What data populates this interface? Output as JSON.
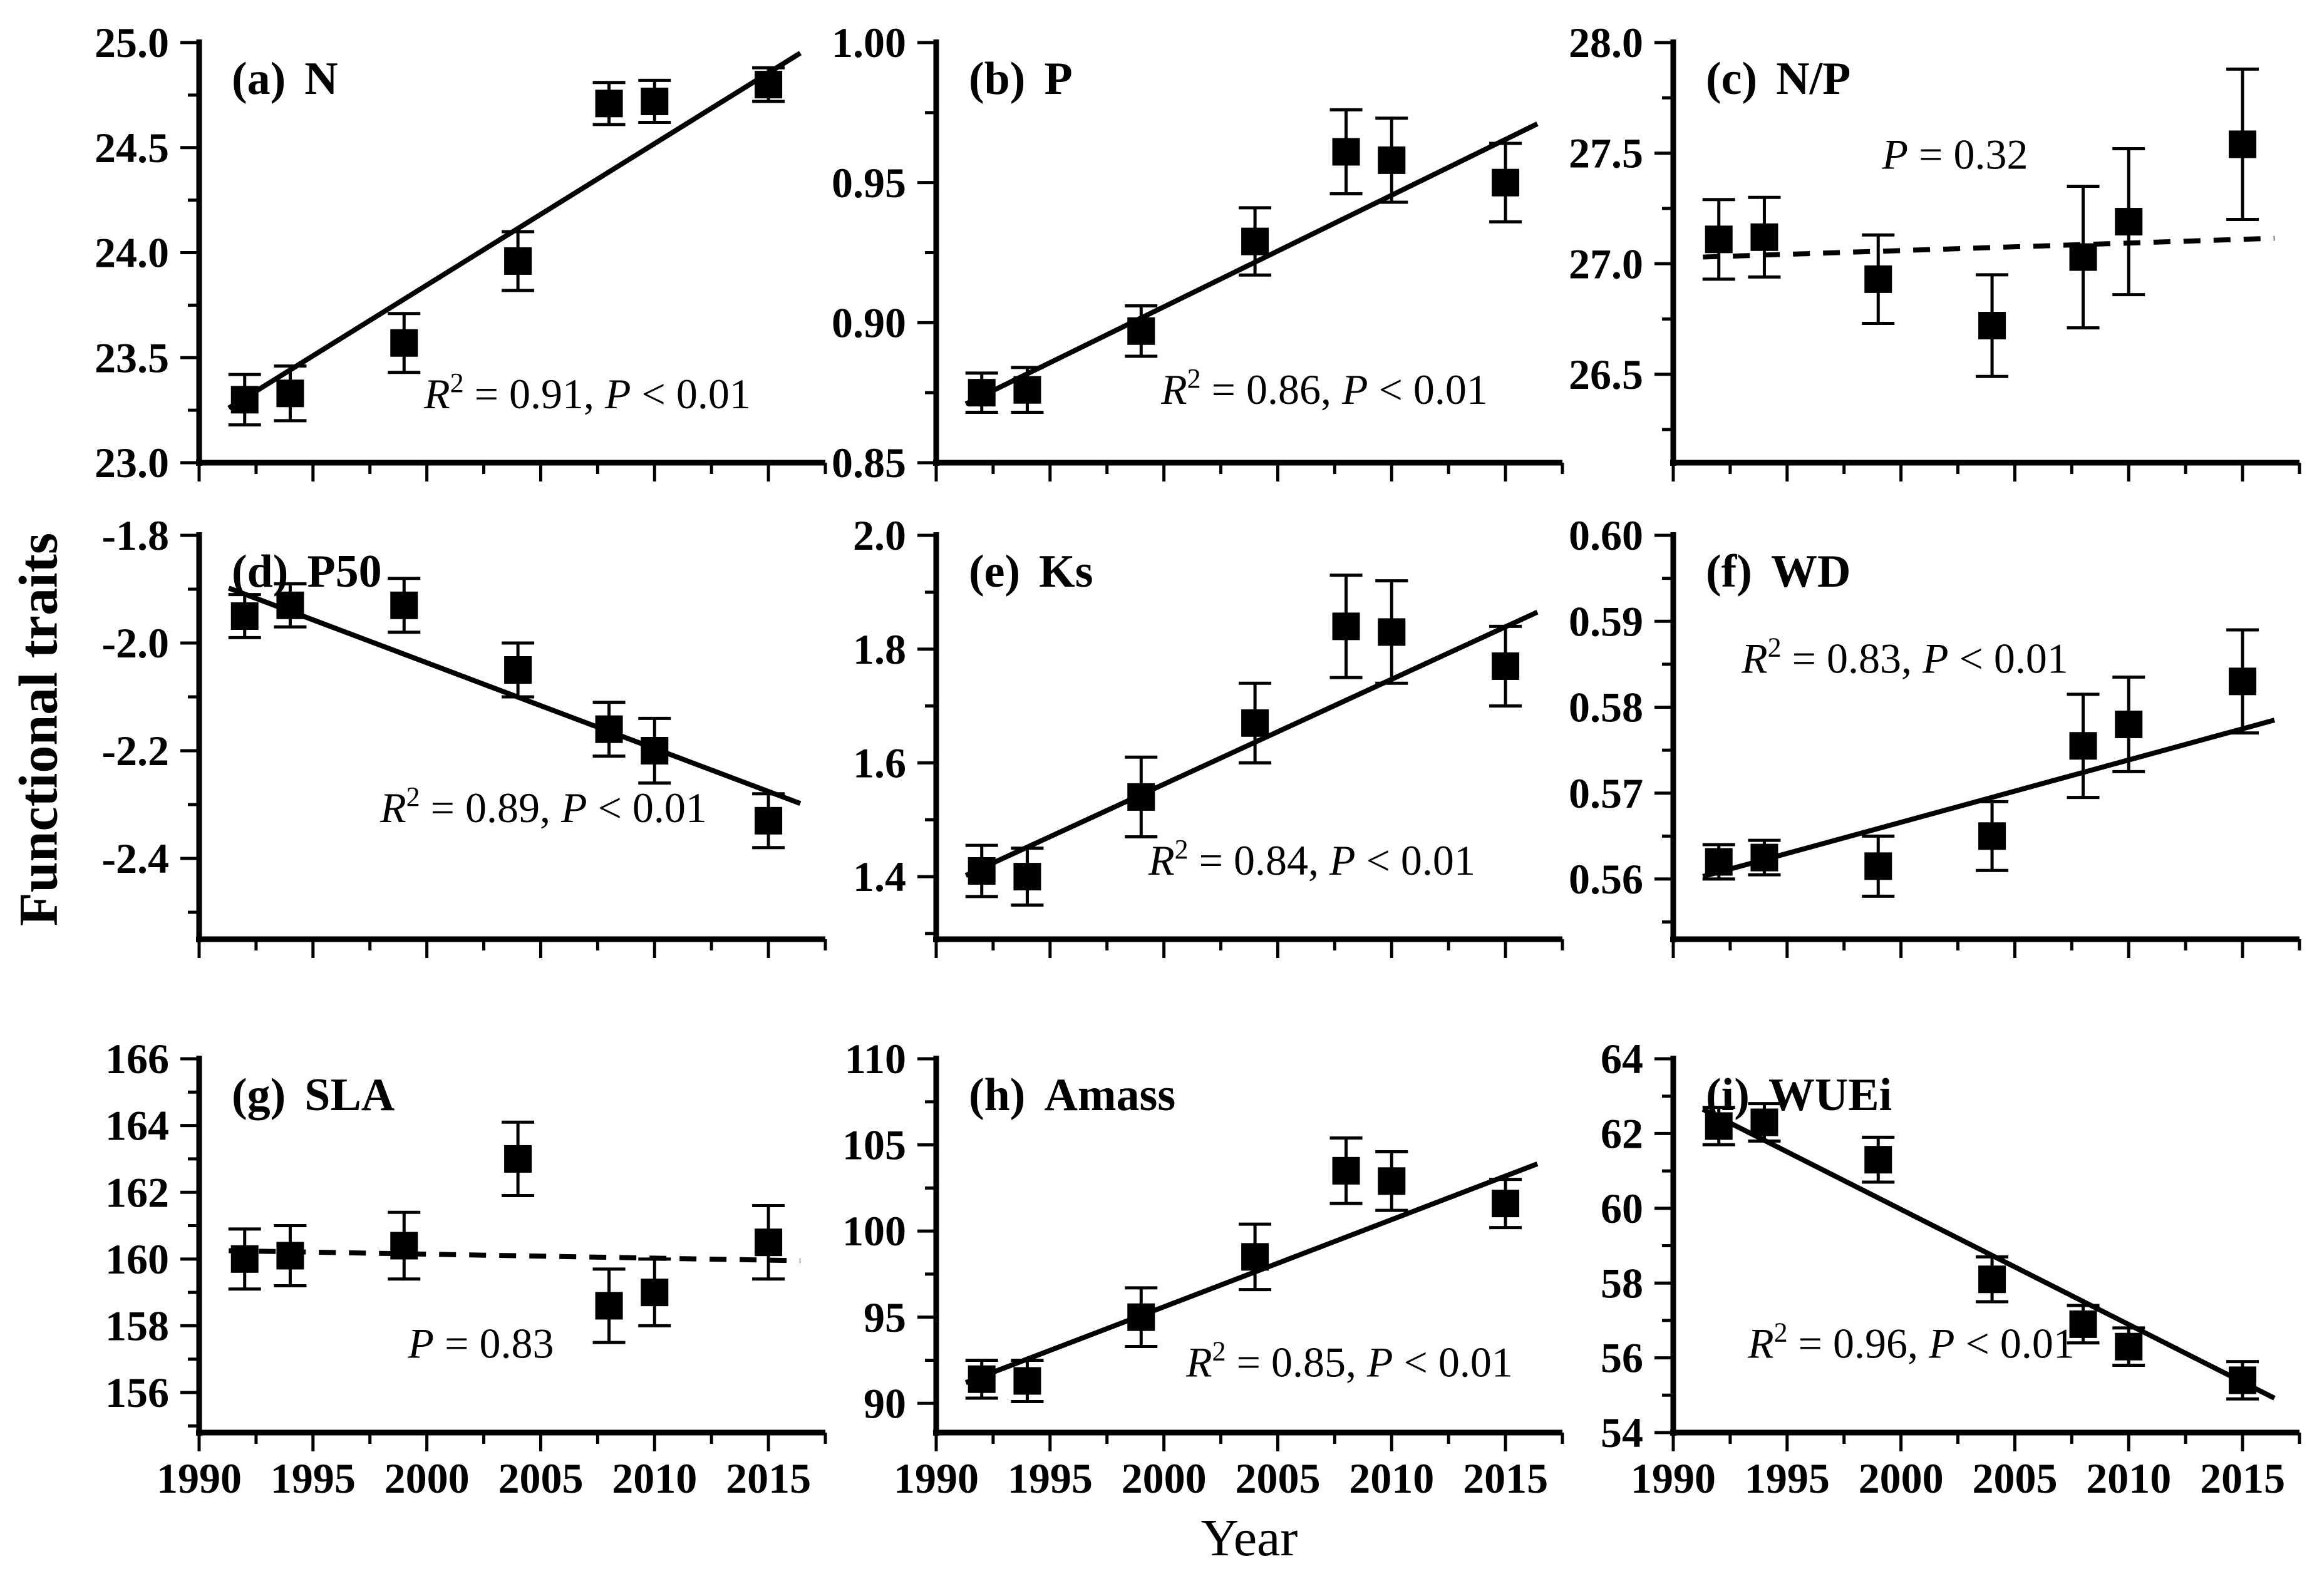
{
  "figure": {
    "y_axis_title": "Functional traits",
    "x_axis_title": "Year",
    "background": "#ffffff",
    "ink_color": "#000000"
  },
  "chart_data": {
    "type": "scatter",
    "title": "",
    "xlabel": "Year",
    "ylabel": "Functional traits",
    "legend": "none",
    "grid": false,
    "x": {
      "lim": [
        1990,
        2017.5
      ],
      "ticks": [
        1990,
        1995,
        2000,
        2005,
        2010,
        2015
      ],
      "tick_labels": [
        "1990",
        "1995",
        "2000",
        "2005",
        "2010",
        "2015"
      ],
      "minor_step": 2.5
    },
    "years": [
      1992,
      1994,
      1999,
      2004,
      2008,
      2010,
      2015
    ],
    "panels": [
      {
        "label": "(a)",
        "trait": "N",
        "values": [
          23.3,
          23.33,
          23.57,
          23.96,
          24.71,
          24.72,
          24.8
        ],
        "errors": [
          0.12,
          0.13,
          0.14,
          0.14,
          0.1,
          0.1,
          0.08
        ],
        "ylim": [
          23.0,
          25.0
        ],
        "yticks": [
          23.0,
          23.5,
          24.0,
          24.5,
          25.0
        ],
        "ytick_labels": [
          "23.0",
          "23.5",
          "24.0",
          "24.5",
          "25.0"
        ],
        "y_minor_step": 0.25,
        "trend": {
          "style": "solid",
          "x_start": 1991.3,
          "y_start": 23.26,
          "x_end": 2016.4,
          "y_end": 24.95
        },
        "stats": {
          "r2": "0.91",
          "p": "< 0.01"
        },
        "stats_pos": {
          "fx": 0.62,
          "fy": 0.13
        }
      },
      {
        "label": "(b)",
        "trait": "P",
        "values": [
          0.875,
          0.876,
          0.897,
          0.929,
          0.961,
          0.958,
          0.95
        ],
        "errors": [
          0.007,
          0.008,
          0.009,
          0.012,
          0.015,
          0.015,
          0.014
        ],
        "ylim": [
          0.85,
          1.0
        ],
        "yticks": [
          0.85,
          0.9,
          0.95,
          1.0
        ],
        "ytick_labels": [
          "0.85",
          "0.90",
          "0.95",
          "1.00"
        ],
        "y_minor_step": 0.025,
        "trend": {
          "style": "solid",
          "x_start": 1991.3,
          "y_start": 0.871,
          "x_end": 2016.4,
          "y_end": 0.971
        },
        "stats": {
          "r2": "0.86",
          "p": "< 0.01"
        },
        "stats_pos": {
          "fx": 0.62,
          "fy": 0.14
        }
      },
      {
        "label": "(c)",
        "trait": "N/P",
        "values": [
          27.11,
          27.12,
          26.93,
          26.72,
          27.03,
          27.19,
          27.54
        ],
        "errors": [
          0.18,
          0.18,
          0.2,
          0.23,
          0.32,
          0.33,
          0.34
        ],
        "ylim": [
          26.1,
          28.0
        ],
        "yticks": [
          26.5,
          27.0,
          27.5,
          28.0
        ],
        "ytick_labels": [
          "26.5",
          "27.0",
          "27.5",
          "28.0"
        ],
        "y_minor_step": 0.25,
        "trend": {
          "style": "dashed",
          "x_start": 1991.3,
          "y_start": 27.03,
          "x_end": 2016.4,
          "y_end": 27.115
        },
        "stats": {
          "r2": null,
          "p": "= 0.32"
        },
        "stats_pos": {
          "fx": 0.45,
          "fy": 0.7
        }
      },
      {
        "label": "(d)",
        "trait": "P50",
        "values": [
          -1.95,
          -1.93,
          -1.93,
          -2.05,
          -2.16,
          -2.2,
          -2.33
        ],
        "errors": [
          0.04,
          0.04,
          0.05,
          0.05,
          0.05,
          0.06,
          0.05
        ],
        "ylim": [
          -2.55,
          -1.8
        ],
        "yticks": [
          -2.4,
          -2.2,
          -2.0,
          -1.8
        ],
        "ytick_labels": [
          "-2.4",
          "-2.2",
          "-2.0",
          "-1.8"
        ],
        "y_minor_step": 0.1,
        "trend": {
          "style": "solid",
          "x_start": 1991.3,
          "y_start": -1.898,
          "x_end": 2016.4,
          "y_end": -2.298
        },
        "stats": {
          "r2": "0.89",
          "p": "< 0.01"
        },
        "stats_pos": {
          "fx": 0.55,
          "fy": 0.29
        }
      },
      {
        "label": "(e)",
        "trait": "Ks",
        "values": [
          1.41,
          1.4,
          1.54,
          1.67,
          1.84,
          1.83,
          1.77
        ],
        "errors": [
          0.045,
          0.05,
          0.07,
          0.07,
          0.09,
          0.09,
          0.07
        ],
        "ylim": [
          1.29,
          2.0
        ],
        "yticks": [
          1.4,
          1.6,
          1.8,
          2.0
        ],
        "ytick_labels": [
          "1.4",
          "1.6",
          "1.8",
          "2.0"
        ],
        "y_minor_step": 0.1,
        "trend": {
          "style": "solid",
          "x_start": 1991.3,
          "y_start": 1.402,
          "x_end": 2016.4,
          "y_end": 1.865
        },
        "stats": {
          "r2": "0.84",
          "p": "< 0.01"
        },
        "stats_pos": {
          "fx": 0.6,
          "fy": 0.16
        }
      },
      {
        "label": "(f)",
        "trait": "WD",
        "values": [
          0.562,
          0.5625,
          0.5615,
          0.565,
          0.5755,
          0.578,
          0.583
        ],
        "errors": [
          0.002,
          0.002,
          0.0035,
          0.004,
          0.006,
          0.0055,
          0.006
        ],
        "ylim": [
          0.553,
          0.6
        ],
        "yticks": [
          0.56,
          0.57,
          0.58,
          0.59,
          0.6
        ],
        "ytick_labels": [
          "0.56",
          "0.57",
          "0.58",
          "0.59",
          "0.60"
        ],
        "y_minor_step": 0.005,
        "trend": {
          "style": "solid",
          "x_start": 1991.3,
          "y_start": 0.5603,
          "x_end": 2016.4,
          "y_end": 0.5785
        },
        "stats": {
          "r2": "0.83",
          "p": "< 0.01"
        },
        "stats_pos": {
          "fx": 0.37,
          "fy": 0.66
        }
      },
      {
        "label": "(g)",
        "trait": "SLA",
        "values": [
          160.0,
          160.1,
          160.4,
          163.0,
          158.6,
          159.0,
          160.5
        ],
        "errors": [
          0.9,
          0.9,
          1.0,
          1.1,
          1.1,
          1.0,
          1.1
        ],
        "ylim": [
          154.8,
          166
        ],
        "yticks": [
          156,
          158,
          160,
          162,
          164,
          166
        ],
        "ytick_labels": [
          "156",
          "158",
          "160",
          "162",
          "164",
          "166"
        ],
        "y_minor_step": 1,
        "trend": {
          "style": "dashed",
          "x_start": 1991.3,
          "y_start": 160.25,
          "x_end": 2016.4,
          "y_end": 159.95
        },
        "stats": {
          "r2": null,
          "p": "= 0.83"
        },
        "stats_pos": {
          "fx": 0.45,
          "fy": 0.2
        }
      },
      {
        "label": "(h)",
        "trait": "Amass",
        "values": [
          91.4,
          91.3,
          95.0,
          98.5,
          103.5,
          102.9,
          101.6
        ],
        "errors": [
          1.1,
          1.2,
          1.7,
          1.9,
          1.9,
          1.7,
          1.4
        ],
        "ylim": [
          88.3,
          110
        ],
        "yticks": [
          90,
          95,
          100,
          105,
          110
        ],
        "ytick_labels": [
          "90",
          "95",
          "100",
          "105",
          "110"
        ],
        "y_minor_step": 2.5,
        "trend": {
          "style": "solid",
          "x_start": 1991.3,
          "y_start": 91.2,
          "x_end": 2016.4,
          "y_end": 103.9
        },
        "stats": {
          "r2": "0.85",
          "p": "< 0.01"
        },
        "stats_pos": {
          "fx": 0.66,
          "fy": 0.15
        }
      },
      {
        "label": "(i)",
        "trait": "WUEi",
        "values": [
          62.2,
          62.3,
          61.3,
          58.1,
          56.9,
          56.3,
          55.4
        ],
        "errors": [
          0.5,
          0.5,
          0.6,
          0.6,
          0.5,
          0.5,
          0.5
        ],
        "ylim": [
          54,
          64
        ],
        "yticks": [
          54,
          56,
          58,
          60,
          62,
          64
        ],
        "ytick_labels": [
          "54",
          "56",
          "58",
          "60",
          "62",
          "64"
        ],
        "y_minor_step": 1,
        "trend": {
          "style": "solid",
          "x_start": 1991.3,
          "y_start": 62.65,
          "x_end": 2016.4,
          "y_end": 54.92
        },
        "stats": {
          "r2": "0.96",
          "p": "< 0.01"
        },
        "stats_pos": {
          "fx": 0.38,
          "fy": 0.2
        }
      }
    ]
  }
}
